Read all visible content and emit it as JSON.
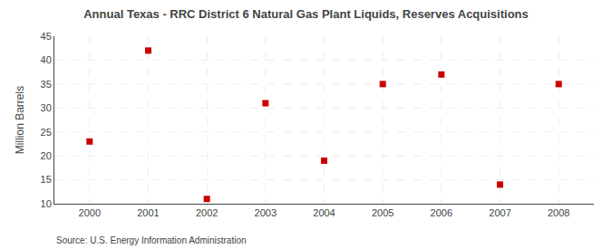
{
  "chart_data": {
    "type": "scatter",
    "title": "Annual Texas - RRC District 6 Natural Gas Plant Liquids, Reserves Acquisitions",
    "ylabel": "Million Barrels",
    "annotations": [
      "Source: U.S. Energy Information Administration"
    ],
    "x": [
      2000,
      2001,
      2002,
      2003,
      2004,
      2005,
      2006,
      2007,
      2008
    ],
    "values": [
      23,
      42,
      11,
      31,
      19,
      35,
      37,
      14,
      35
    ],
    "color": "#cc0000",
    "marker": "square",
    "xlim": [
      1999.4,
      2008.6
    ],
    "xticks": [
      2000,
      2001,
      2002,
      2003,
      2004,
      2005,
      2006,
      2007,
      2008
    ],
    "ylim": [
      10,
      45
    ],
    "yticks": [
      10,
      15,
      20,
      25,
      30,
      35,
      40,
      45
    ],
    "grid": true
  }
}
